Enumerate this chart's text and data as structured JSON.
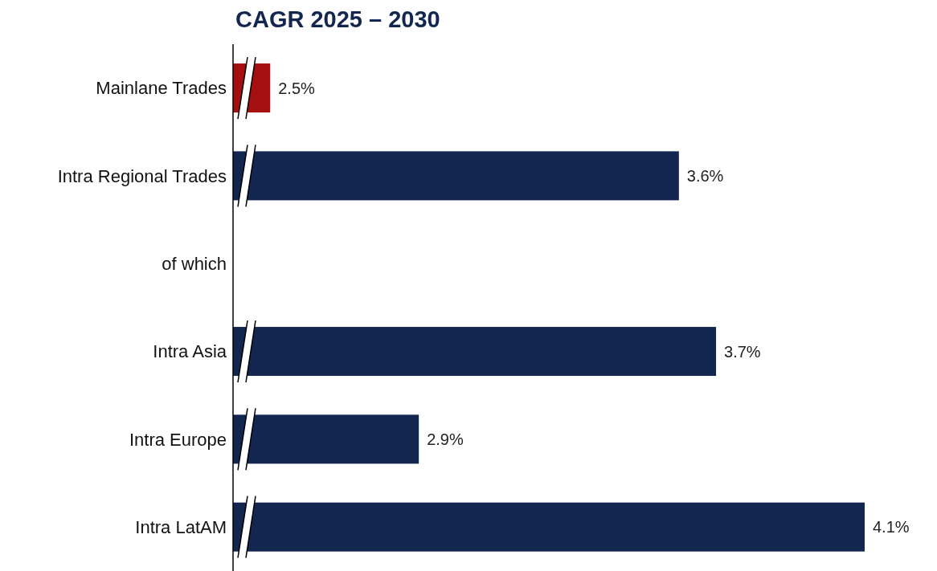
{
  "chart_data": {
    "type": "bar",
    "orientation": "horizontal",
    "title": "CAGR 2025 – 2030",
    "categories": [
      "Mainlane Trades",
      "Intra Regional Trades",
      "of which",
      "Intra Asia",
      "Intra Europe",
      "Intra LatAM"
    ],
    "values": [
      2.5,
      3.6,
      null,
      3.7,
      2.9,
      4.1
    ],
    "colors": [
      "#a50f0f",
      "#12264f",
      "#12264f",
      "#12264f",
      "#12264f",
      "#12264f"
    ],
    "value_labels": [
      "2.5%",
      "3.6%",
      null,
      "3.7%",
      "2.9%",
      "4.1%"
    ],
    "xlim": [
      2.4,
      4.1
    ],
    "tick_labels": "y"
  }
}
